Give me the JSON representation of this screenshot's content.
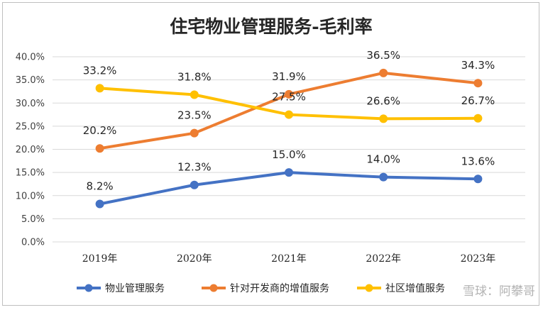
{
  "chart_data": {
    "type": "line",
    "title": "住宅物业管理服务-毛利率",
    "xlabel": "",
    "ylabel": "",
    "categories": [
      "2019年",
      "2020年",
      "2021年",
      "2022年",
      "2023年"
    ],
    "ylim": [
      0,
      40
    ],
    "yticks": [
      "0.0%",
      "5.0%",
      "10.0%",
      "15.0%",
      "20.0%",
      "25.0%",
      "30.0%",
      "35.0%",
      "40.0%"
    ],
    "grid": true,
    "legend": "bottom",
    "series": [
      {
        "name": "物业管理服务",
        "color": "#4472c4",
        "values": [
          8.2,
          12.3,
          15.0,
          14.0,
          13.6
        ],
        "labels": [
          "8.2%",
          "12.3%",
          "15.0%",
          "14.0%",
          "13.6%"
        ]
      },
      {
        "name": "针对开发商的增值服务",
        "color": "#ed7d31",
        "values": [
          20.2,
          23.5,
          31.9,
          36.5,
          34.3
        ],
        "labels": [
          "20.2%",
          "23.5%",
          "31.9%",
          "36.5%",
          "34.3%"
        ]
      },
      {
        "name": "社区增值服务",
        "color": "#ffc000",
        "values": [
          33.2,
          31.8,
          27.5,
          26.6,
          26.7
        ],
        "labels": [
          "33.2%",
          "31.8%",
          "27.5%",
          "26.6%",
          "26.7%"
        ]
      }
    ]
  },
  "watermark": "雪球：阿攀哥"
}
